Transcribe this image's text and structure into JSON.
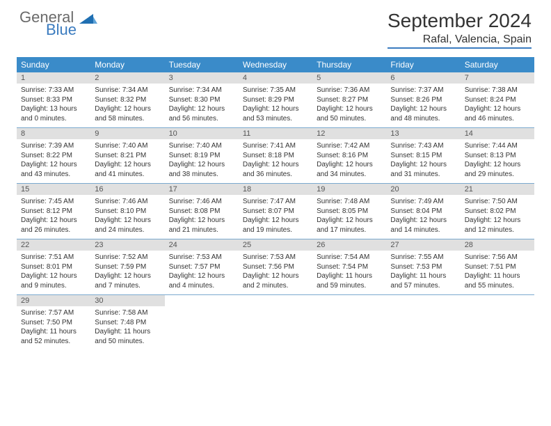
{
  "logo": {
    "word1": "General",
    "word2": "Blue"
  },
  "title": "September 2024",
  "location": "Rafal, Valencia, Spain",
  "colors": {
    "header_bg": "#3a8bc9",
    "header_text": "#ffffff",
    "daynum_bg": "#e0e0e0",
    "row_border": "#7aa9cf",
    "logo_gray": "#6a6a6a",
    "logo_blue": "#3a7bbf"
  },
  "weekdays": [
    "Sunday",
    "Monday",
    "Tuesday",
    "Wednesday",
    "Thursday",
    "Friday",
    "Saturday"
  ],
  "weeks": [
    [
      {
        "n": "1",
        "sunrise": "Sunrise: 7:33 AM",
        "sunset": "Sunset: 8:33 PM",
        "day": "Daylight: 13 hours and 0 minutes."
      },
      {
        "n": "2",
        "sunrise": "Sunrise: 7:34 AM",
        "sunset": "Sunset: 8:32 PM",
        "day": "Daylight: 12 hours and 58 minutes."
      },
      {
        "n": "3",
        "sunrise": "Sunrise: 7:34 AM",
        "sunset": "Sunset: 8:30 PM",
        "day": "Daylight: 12 hours and 56 minutes."
      },
      {
        "n": "4",
        "sunrise": "Sunrise: 7:35 AM",
        "sunset": "Sunset: 8:29 PM",
        "day": "Daylight: 12 hours and 53 minutes."
      },
      {
        "n": "5",
        "sunrise": "Sunrise: 7:36 AM",
        "sunset": "Sunset: 8:27 PM",
        "day": "Daylight: 12 hours and 50 minutes."
      },
      {
        "n": "6",
        "sunrise": "Sunrise: 7:37 AM",
        "sunset": "Sunset: 8:26 PM",
        "day": "Daylight: 12 hours and 48 minutes."
      },
      {
        "n": "7",
        "sunrise": "Sunrise: 7:38 AM",
        "sunset": "Sunset: 8:24 PM",
        "day": "Daylight: 12 hours and 46 minutes."
      }
    ],
    [
      {
        "n": "8",
        "sunrise": "Sunrise: 7:39 AM",
        "sunset": "Sunset: 8:22 PM",
        "day": "Daylight: 12 hours and 43 minutes."
      },
      {
        "n": "9",
        "sunrise": "Sunrise: 7:40 AM",
        "sunset": "Sunset: 8:21 PM",
        "day": "Daylight: 12 hours and 41 minutes."
      },
      {
        "n": "10",
        "sunrise": "Sunrise: 7:40 AM",
        "sunset": "Sunset: 8:19 PM",
        "day": "Daylight: 12 hours and 38 minutes."
      },
      {
        "n": "11",
        "sunrise": "Sunrise: 7:41 AM",
        "sunset": "Sunset: 8:18 PM",
        "day": "Daylight: 12 hours and 36 minutes."
      },
      {
        "n": "12",
        "sunrise": "Sunrise: 7:42 AM",
        "sunset": "Sunset: 8:16 PM",
        "day": "Daylight: 12 hours and 34 minutes."
      },
      {
        "n": "13",
        "sunrise": "Sunrise: 7:43 AM",
        "sunset": "Sunset: 8:15 PM",
        "day": "Daylight: 12 hours and 31 minutes."
      },
      {
        "n": "14",
        "sunrise": "Sunrise: 7:44 AM",
        "sunset": "Sunset: 8:13 PM",
        "day": "Daylight: 12 hours and 29 minutes."
      }
    ],
    [
      {
        "n": "15",
        "sunrise": "Sunrise: 7:45 AM",
        "sunset": "Sunset: 8:12 PM",
        "day": "Daylight: 12 hours and 26 minutes."
      },
      {
        "n": "16",
        "sunrise": "Sunrise: 7:46 AM",
        "sunset": "Sunset: 8:10 PM",
        "day": "Daylight: 12 hours and 24 minutes."
      },
      {
        "n": "17",
        "sunrise": "Sunrise: 7:46 AM",
        "sunset": "Sunset: 8:08 PM",
        "day": "Daylight: 12 hours and 21 minutes."
      },
      {
        "n": "18",
        "sunrise": "Sunrise: 7:47 AM",
        "sunset": "Sunset: 8:07 PM",
        "day": "Daylight: 12 hours and 19 minutes."
      },
      {
        "n": "19",
        "sunrise": "Sunrise: 7:48 AM",
        "sunset": "Sunset: 8:05 PM",
        "day": "Daylight: 12 hours and 17 minutes."
      },
      {
        "n": "20",
        "sunrise": "Sunrise: 7:49 AM",
        "sunset": "Sunset: 8:04 PM",
        "day": "Daylight: 12 hours and 14 minutes."
      },
      {
        "n": "21",
        "sunrise": "Sunrise: 7:50 AM",
        "sunset": "Sunset: 8:02 PM",
        "day": "Daylight: 12 hours and 12 minutes."
      }
    ],
    [
      {
        "n": "22",
        "sunrise": "Sunrise: 7:51 AM",
        "sunset": "Sunset: 8:01 PM",
        "day": "Daylight: 12 hours and 9 minutes."
      },
      {
        "n": "23",
        "sunrise": "Sunrise: 7:52 AM",
        "sunset": "Sunset: 7:59 PM",
        "day": "Daylight: 12 hours and 7 minutes."
      },
      {
        "n": "24",
        "sunrise": "Sunrise: 7:53 AM",
        "sunset": "Sunset: 7:57 PM",
        "day": "Daylight: 12 hours and 4 minutes."
      },
      {
        "n": "25",
        "sunrise": "Sunrise: 7:53 AM",
        "sunset": "Sunset: 7:56 PM",
        "day": "Daylight: 12 hours and 2 minutes."
      },
      {
        "n": "26",
        "sunrise": "Sunrise: 7:54 AM",
        "sunset": "Sunset: 7:54 PM",
        "day": "Daylight: 11 hours and 59 minutes."
      },
      {
        "n": "27",
        "sunrise": "Sunrise: 7:55 AM",
        "sunset": "Sunset: 7:53 PM",
        "day": "Daylight: 11 hours and 57 minutes."
      },
      {
        "n": "28",
        "sunrise": "Sunrise: 7:56 AM",
        "sunset": "Sunset: 7:51 PM",
        "day": "Daylight: 11 hours and 55 minutes."
      }
    ],
    [
      {
        "n": "29",
        "sunrise": "Sunrise: 7:57 AM",
        "sunset": "Sunset: 7:50 PM",
        "day": "Daylight: 11 hours and 52 minutes."
      },
      {
        "n": "30",
        "sunrise": "Sunrise: 7:58 AM",
        "sunset": "Sunset: 7:48 PM",
        "day": "Daylight: 11 hours and 50 minutes."
      },
      {
        "empty": true
      },
      {
        "empty": true
      },
      {
        "empty": true
      },
      {
        "empty": true
      },
      {
        "empty": true
      }
    ]
  ]
}
